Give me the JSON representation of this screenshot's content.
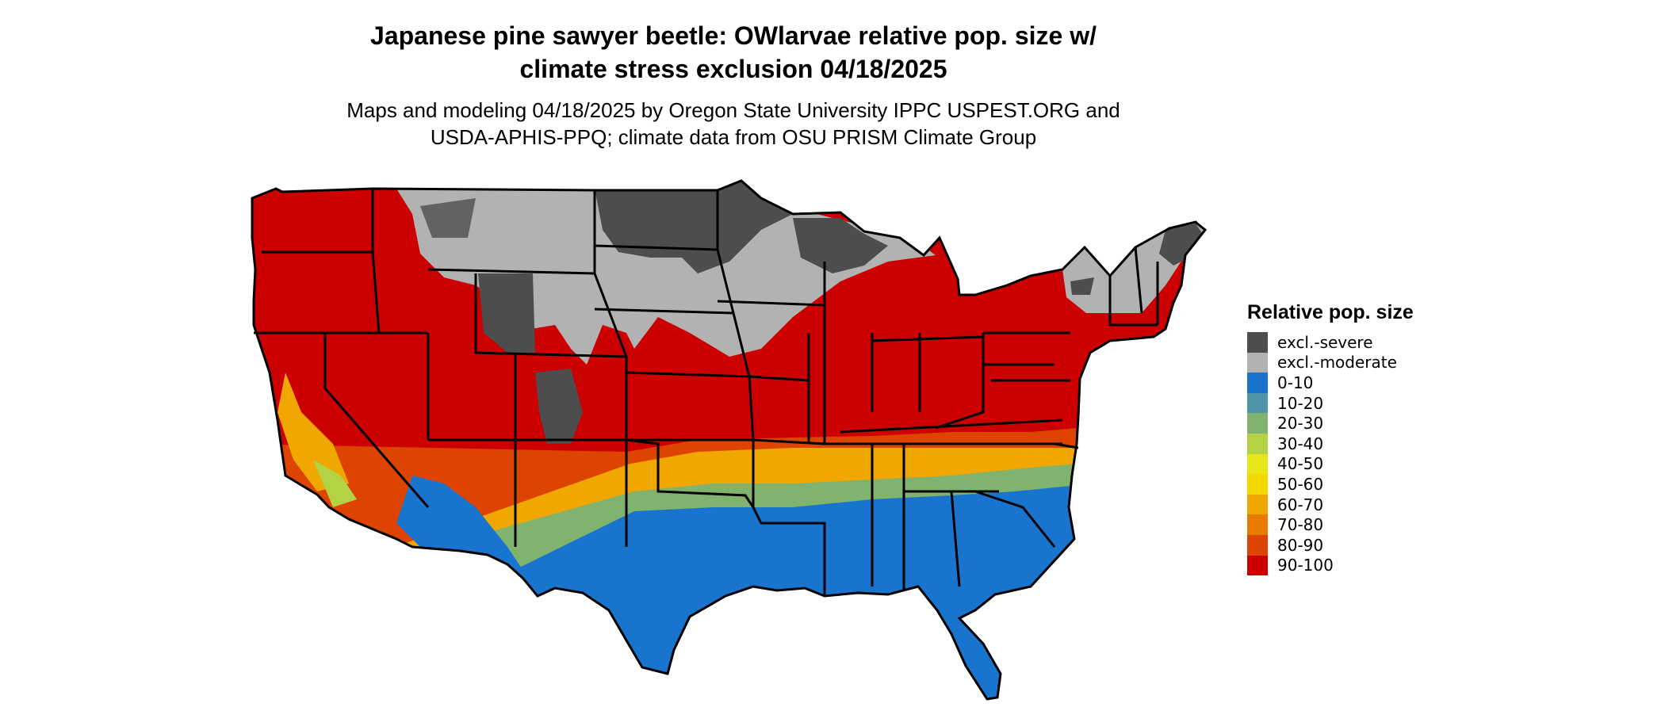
{
  "title_line1": "Japanese pine sawyer beetle: OWlarvae relative pop. size w/",
  "title_line2": "climate stress exclusion 04/18/2025",
  "subtitle_line1": "Maps and modeling 04/18/2025 by Oregon State University IPPC USPEST.ORG and",
  "subtitle_line2": "USDA-APHIS-PPQ; climate data from OSU PRISM Climate Group",
  "legend": {
    "title": "Relative pop. size",
    "items": [
      {
        "label": "excl.-severe",
        "color": "#4d4d4d"
      },
      {
        "label": "excl.-moderate",
        "color": "#b2b2b2"
      },
      {
        "label": "0-10",
        "color": "#1874cd"
      },
      {
        "label": "10-20",
        "color": "#4f94a8"
      },
      {
        "label": "20-30",
        "color": "#7fb36e"
      },
      {
        "label": "30-40",
        "color": "#b4d245"
      },
      {
        "label": "40-50",
        "color": "#e6e619"
      },
      {
        "label": "50-60",
        "color": "#f5d800"
      },
      {
        "label": "60-70",
        "color": "#f0a800"
      },
      {
        "label": "70-80",
        "color": "#e87a00"
      },
      {
        "label": "80-90",
        "color": "#dd4400"
      },
      {
        "label": "90-100",
        "color": "#cc0000"
      }
    ]
  }
}
